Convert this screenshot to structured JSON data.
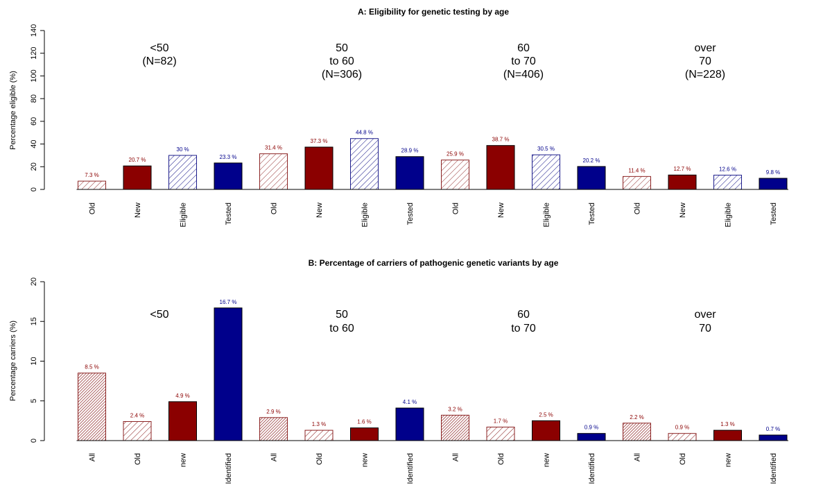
{
  "colors": {
    "red": "#8B0000",
    "blue": "#00008B",
    "hatch_red": "#8B2222",
    "hatch_blue": "#1C1C8B"
  },
  "chart_data": [
    {
      "type": "bar",
      "title": "A: Eligibility for genetic testing by age",
      "ylabel": "Percentage eligible (%)",
      "ylim": [
        0,
        140
      ],
      "yticks": [
        0,
        20,
        40,
        60,
        80,
        100,
        120,
        140
      ],
      "groups": [
        {
          "lines": [
            "<50",
            "(N=82)"
          ]
        },
        {
          "lines": [
            "50",
            "to 60",
            "(N=306)"
          ]
        },
        {
          "lines": [
            "60",
            "to 70",
            "(N=406)"
          ]
        },
        {
          "lines": [
            "over",
            "70",
            "(N=228)"
          ]
        }
      ],
      "categories": [
        "Old",
        "New",
        "Eligible",
        "Tested",
        "Old",
        "New",
        "Eligible",
        "Tested",
        "Old",
        "New",
        "Eligible",
        "Tested",
        "Old",
        "New",
        "Eligible",
        "Tested"
      ],
      "values": [
        7.3,
        20.7,
        30,
        23.3,
        31.4,
        37.3,
        44.8,
        28.9,
        25.9,
        38.7,
        30.5,
        20.2,
        11.4,
        12.7,
        12.6,
        9.8
      ],
      "labels": [
        "7.3 %",
        "20.7 %",
        "30 %",
        "23.3 %",
        "31.4 %",
        "37.3 %",
        "44.8 %",
        "28.9 %",
        "25.9 %",
        "38.7 %",
        "30.5 %",
        "20.2 %",
        "11.4 %",
        "12.7 %",
        "12.6 %",
        "9.8 %"
      ],
      "styles": [
        "red-hatch",
        "red-solid",
        "blue-hatch",
        "blue-solid",
        "red-hatch",
        "red-solid",
        "blue-hatch",
        "blue-solid",
        "red-hatch",
        "red-solid",
        "blue-hatch",
        "blue-solid",
        "red-hatch",
        "red-solid",
        "blue-hatch",
        "blue-solid"
      ]
    },
    {
      "type": "bar",
      "title": "B: Percentage of carriers of pathogenic genetic variants by age",
      "ylabel": "Percentage carriers (%)",
      "ylim": [
        0,
        20
      ],
      "yticks": [
        0,
        5,
        10,
        15,
        20
      ],
      "groups": [
        {
          "lines": [
            "<50"
          ]
        },
        {
          "lines": [
            "50",
            "to 60"
          ]
        },
        {
          "lines": [
            "60",
            "to 70"
          ]
        },
        {
          "lines": [
            "over",
            "70"
          ]
        }
      ],
      "categories": [
        "All",
        "Old",
        "new",
        "Identified",
        "All",
        "Old",
        "new",
        "Identified",
        "All",
        "Old",
        "new",
        "Identified",
        "All",
        "Old",
        "new",
        "Identified"
      ],
      "values": [
        8.5,
        2.4,
        4.9,
        16.7,
        2.9,
        1.3,
        1.6,
        4.1,
        3.2,
        1.7,
        2.5,
        0.9,
        2.2,
        0.9,
        1.3,
        0.7
      ],
      "labels": [
        "8.5 %",
        "2.4 %",
        "4.9 %",
        "16.7 %",
        "2.9 %",
        "1.3 %",
        "1.6 %",
        "4.1 %",
        "3.2 %",
        "1.7 %",
        "2.5 %",
        "0.9 %",
        "2.2 %",
        "0.9 %",
        "1.3 %",
        "0.7 %"
      ],
      "styles": [
        "red-dense",
        "red-hatch",
        "red-solid",
        "blue-solid",
        "red-dense",
        "red-hatch",
        "red-solid",
        "blue-solid",
        "red-dense",
        "red-hatch",
        "red-solid",
        "blue-solid",
        "red-dense",
        "red-hatch",
        "red-solid",
        "blue-solid"
      ]
    }
  ]
}
